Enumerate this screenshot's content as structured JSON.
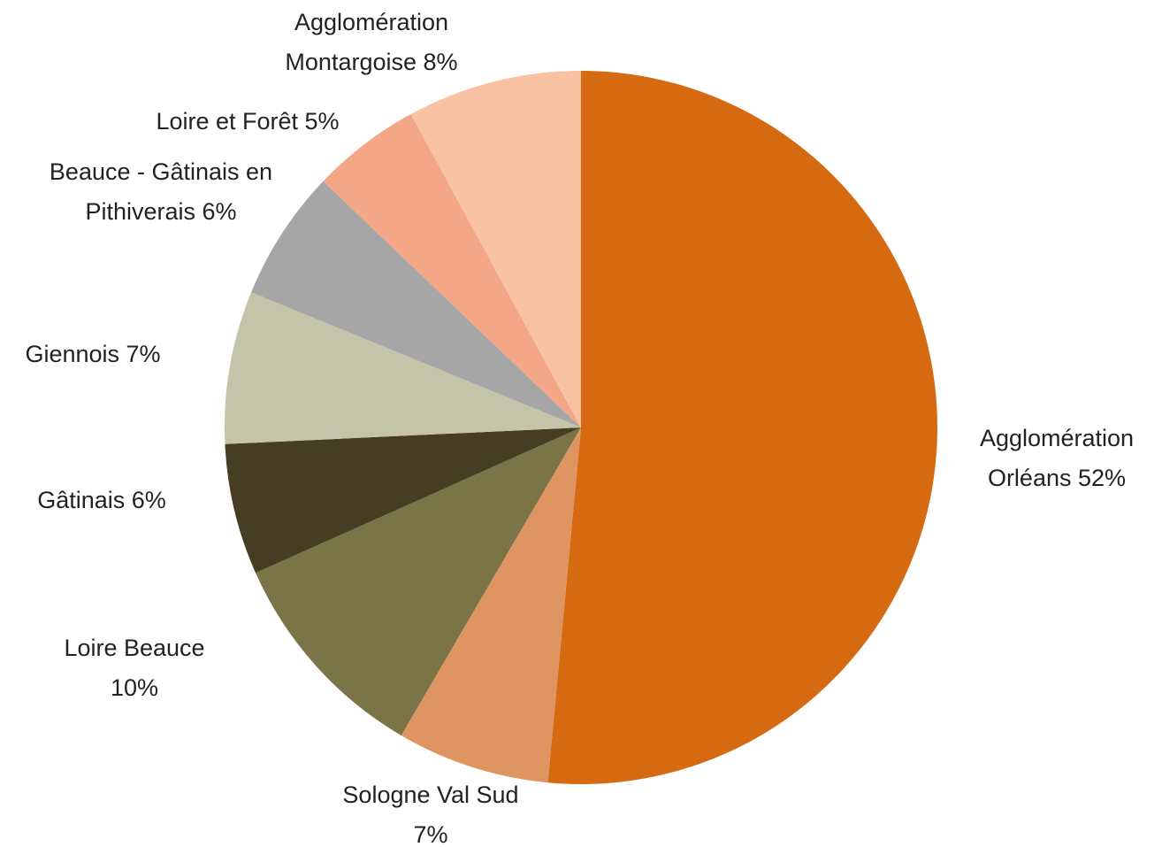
{
  "chart_data": {
    "type": "pie",
    "categories": [
      "Agglomération Orléans",
      "Sologne Val Sud",
      "Loire Beauce",
      "Gâtinais",
      "Giennois",
      "Beauce - Gâtinais en Pithiverais",
      "Loire et Forêt",
      "Agglomération Montargoise"
    ],
    "values": [
      52,
      7,
      10,
      6,
      7,
      6,
      5,
      8
    ],
    "value_labels": [
      "52%",
      "7%",
      "10%",
      "6%",
      "7%",
      "6%",
      "5%",
      "8%"
    ],
    "colors": [
      "#D56A10",
      "#DE9562",
      "#7B7446",
      "#463D22",
      "#C3C4A9",
      "#A6A6A6",
      "#F3A787",
      "#F9C3A3"
    ]
  }
}
